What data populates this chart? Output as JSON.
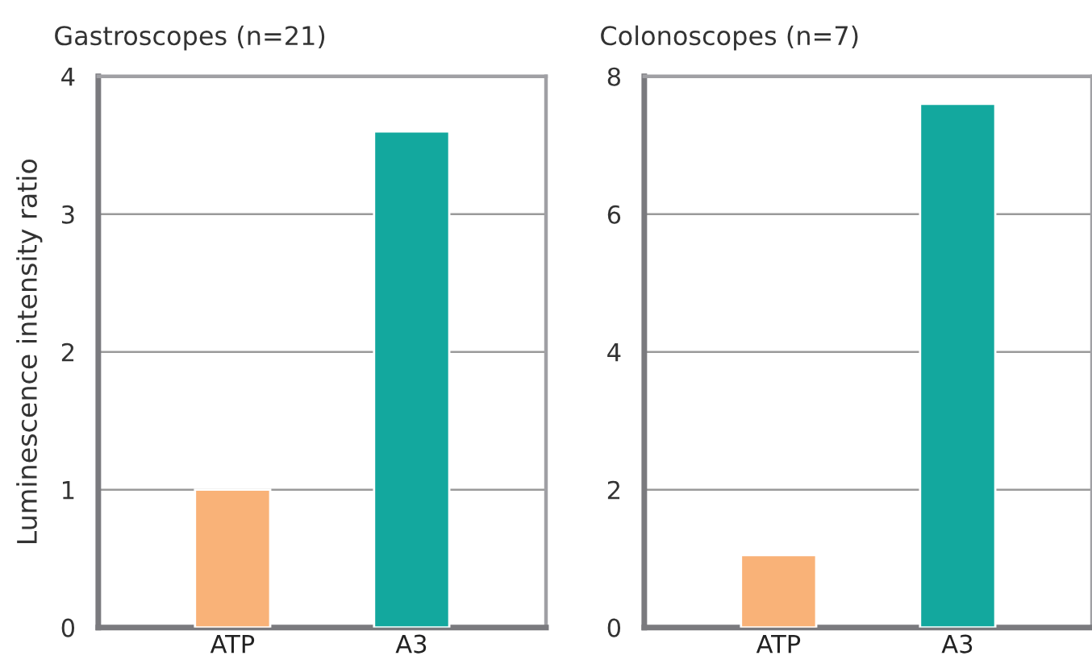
{
  "chart_data": [
    {
      "type": "bar",
      "title": "Gastroscopes (n=21)",
      "ylabel": "Luminescence intensity ratio",
      "categories": [
        "ATP",
        "A3"
      ],
      "values": [
        1.0,
        3.6
      ],
      "colors": [
        "#f9b278",
        "#13a89e"
      ],
      "ylim": [
        0,
        4
      ],
      "yticks": [
        0,
        1,
        2,
        3,
        4
      ],
      "grid": "y",
      "legend": false
    },
    {
      "type": "bar",
      "title": "Colonoscopes (n=7)",
      "categories": [
        "ATP",
        "A3"
      ],
      "values": [
        1.05,
        7.6
      ],
      "colors": [
        "#f9b278",
        "#13a89e"
      ],
      "ylim": [
        0,
        8
      ],
      "yticks": [
        0,
        2,
        4,
        6,
        8
      ],
      "grid": "y",
      "legend": false
    }
  ]
}
